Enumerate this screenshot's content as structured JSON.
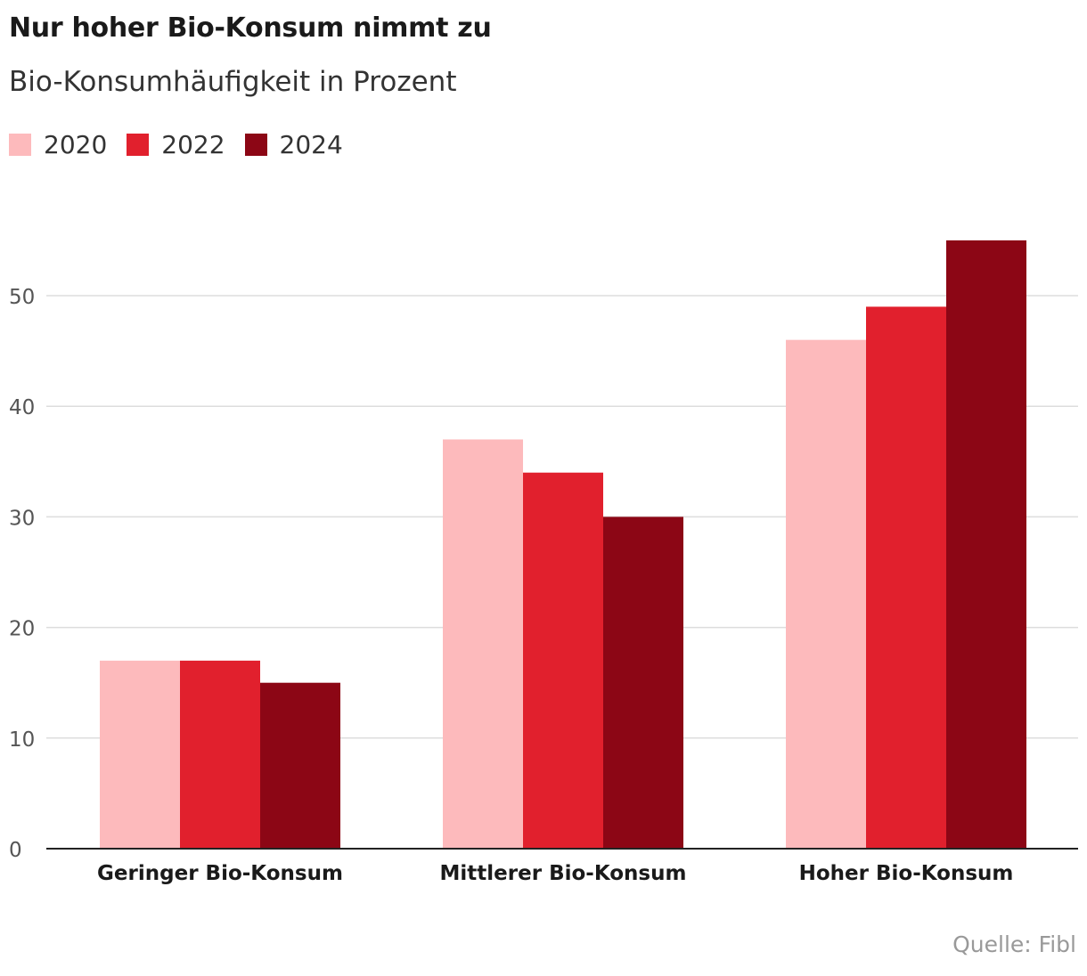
{
  "header": {
    "title": "Nur hoher Bio-Konsum nimmt zu",
    "subtitle": "Bio-Konsumhäufigkeit in Prozent"
  },
  "footer": {
    "source": "Quelle: Fibl"
  },
  "colors": {
    "s2020": "#fdbabc",
    "s2022": "#e1202d",
    "s2024": "#8c0615",
    "grid": "#dddddd",
    "axis": "#222222",
    "tick_text": "#555555"
  },
  "chart_data": {
    "type": "bar",
    "title": "Nur hoher Bio-Konsum nimmt zu",
    "subtitle": "Bio-Konsumhäufigkeit in Prozent",
    "xlabel": "",
    "ylabel": "",
    "categories": [
      "Geringer Bio-Konsum",
      "Mittlerer Bio-Konsum",
      "Hoher Bio-Konsum"
    ],
    "series": [
      {
        "name": "2020",
        "color": "#fdbabc",
        "values": [
          17,
          37,
          46
        ]
      },
      {
        "name": "2022",
        "color": "#e1202d",
        "values": [
          17,
          34,
          49
        ]
      },
      {
        "name": "2024",
        "color": "#8c0615",
        "values": [
          15,
          30,
          55
        ]
      }
    ],
    "yticks": [
      0,
      10,
      20,
      30,
      40,
      50
    ],
    "ylim": [
      0,
      55
    ],
    "grid": true,
    "legend_position": "top-left"
  }
}
